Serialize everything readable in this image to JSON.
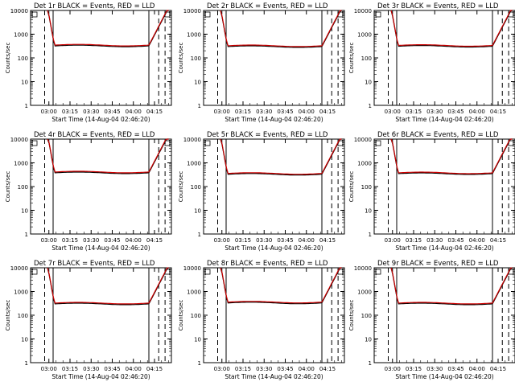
{
  "chart_data": {
    "type": "line",
    "layout": "3x3 grid",
    "yscale": "log",
    "ylim": [
      1,
      10000
    ],
    "ylabel": "Counts/sec",
    "xlabel": "Start Time (14-Aug-04 02:46:20)",
    "x_ticklabels": [
      "03:00",
      "03:15",
      "03:30",
      "03:45",
      "04:00",
      "04:15"
    ],
    "y_ticklabels": [
      "1",
      "10",
      "100",
      "1000",
      "10000"
    ],
    "colors": {
      "events": "#000000",
      "lld": "#cc0000"
    },
    "panels": [
      {
        "title": "Det 1r  BLACK = Events, RED = LLD",
        "plateau": 320,
        "series": [
          {
            "name": "Events",
            "color": "#000000"
          },
          {
            "name": "LLD",
            "color": "#cc0000"
          }
        ]
      },
      {
        "title": "Det 2r  BLACK = Events, RED = LLD",
        "plateau": 300,
        "series": [
          {
            "name": "Events",
            "color": "#000000"
          },
          {
            "name": "LLD",
            "color": "#cc0000"
          }
        ]
      },
      {
        "title": "Det 3r  BLACK = Events, RED = LLD",
        "plateau": 310,
        "series": [
          {
            "name": "Events",
            "color": "#000000"
          },
          {
            "name": "LLD",
            "color": "#cc0000"
          }
        ]
      },
      {
        "title": "Det 4r  BLACK = Events, RED = LLD",
        "plateau": 380,
        "series": [
          {
            "name": "Events",
            "color": "#000000"
          },
          {
            "name": "LLD",
            "color": "#cc0000"
          }
        ]
      },
      {
        "title": "Det 5r  BLACK = Events, RED = LLD",
        "plateau": 330,
        "series": [
          {
            "name": "Events",
            "color": "#000000"
          },
          {
            "name": "LLD",
            "color": "#cc0000"
          }
        ]
      },
      {
        "title": "Det 6r  BLACK = Events, RED = LLD",
        "plateau": 350,
        "series": [
          {
            "name": "Events",
            "color": "#000000"
          },
          {
            "name": "LLD",
            "color": "#cc0000"
          }
        ]
      },
      {
        "title": "Det 7r  BLACK = Events, RED = LLD",
        "plateau": 300,
        "series": [
          {
            "name": "Events",
            "color": "#000000"
          },
          {
            "name": "LLD",
            "color": "#cc0000"
          }
        ]
      },
      {
        "title": "Det 8r  BLACK = Events, RED = LLD",
        "plateau": 330,
        "series": [
          {
            "name": "Events",
            "color": "#000000"
          },
          {
            "name": "LLD",
            "color": "#cc0000"
          }
        ]
      },
      {
        "title": "Det 9r  BLACK = Events, RED = LLD",
        "plateau": 300,
        "series": [
          {
            "name": "Events",
            "color": "#000000"
          },
          {
            "name": "LLD",
            "color": "#cc0000"
          }
        ]
      }
    ]
  }
}
